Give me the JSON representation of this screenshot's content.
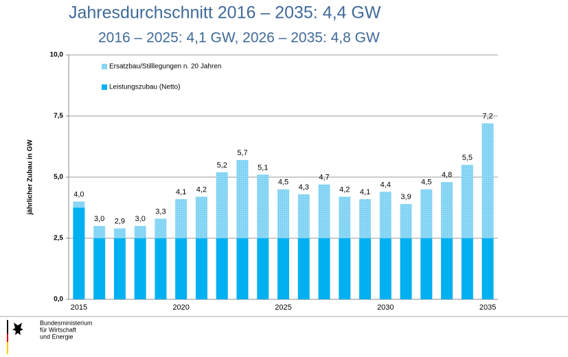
{
  "chart_data": {
    "type": "stacked_bar",
    "title": "Jahresdurchschnitt 2016 – 2035: 4,4 GW",
    "subtitle": "2016 – 2025: 4,1 GW, 2026 – 2035: 4,8 GW",
    "y_label": "jährlicher Zubau in GW",
    "categories": [
      2015,
      null,
      null,
      null,
      null,
      2020,
      null,
      null,
      null,
      null,
      2025,
      null,
      null,
      null,
      null,
      2030,
      null,
      null,
      null,
      null,
      2035
    ],
    "series": [
      {
        "name": "Leistungszubau (Netto)",
        "color": "#00b0f0",
        "values": [
          3.75,
          2.5,
          2.5,
          2.5,
          2.5,
          2.5,
          2.5,
          2.5,
          2.5,
          2.5,
          2.5,
          2.5,
          2.5,
          2.5,
          2.5,
          2.5,
          2.5,
          2.5,
          2.5,
          2.5,
          2.5
        ]
      },
      {
        "name": "Ersatzbau/Stilllegungen n. 20 Jahren",
        "color": "#8fd8f5",
        "values": [
          0.25,
          0.5,
          0.4,
          0.5,
          0.8,
          1.6,
          1.7,
          2.7,
          3.2,
          2.6,
          2.0,
          1.8,
          2.2,
          1.7,
          1.6,
          1.9,
          1.4,
          2.0,
          2.3,
          3.0,
          4.7
        ]
      }
    ],
    "data_labels": [
      "4,0",
      "3,0",
      "2,9",
      "3,0",
      "3,3",
      "4,1",
      "4,2",
      "5,2",
      "5,7",
      "5,1",
      "4,5",
      "4,3",
      "4,7",
      "4,2",
      "4,1",
      "4,4",
      "3,9",
      "4,5",
      "4,8",
      "5,5",
      "7,2"
    ],
    "ylim": [
      0,
      10
    ],
    "yticks": [
      {
        "value": 0,
        "label": "0,0"
      },
      {
        "value": 2.5,
        "label": "2,5"
      },
      {
        "value": 5,
        "label": "5,0"
      },
      {
        "value": 7.5,
        "label": "7,5"
      },
      {
        "value": 10,
        "label": "10,0"
      }
    ],
    "grid": true,
    "legend": "top-left"
  },
  "footer": {
    "logo_lines": [
      "Bundesministerium",
      "für Wirtschaft",
      "und Energie"
    ]
  }
}
